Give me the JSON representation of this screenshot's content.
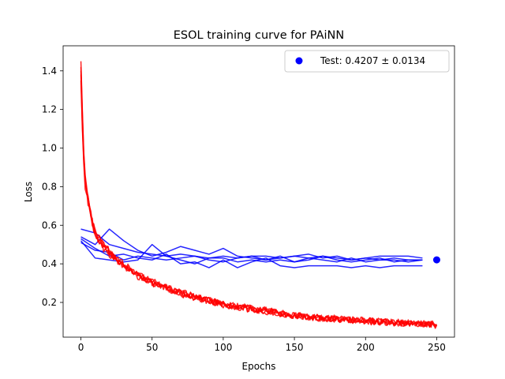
{
  "chart_data": {
    "type": "line",
    "title": "ESOL training curve for PAiNN",
    "xlabel": "Epochs",
    "ylabel": "Loss",
    "xlim": [
      -12.5,
      262.5
    ],
    "ylim": [
      0.02,
      1.53
    ],
    "xticks": [
      0,
      50,
      100,
      150,
      200,
      250
    ],
    "yticks": [
      0.2,
      0.4,
      0.6,
      0.8,
      1.0,
      1.2,
      1.4
    ],
    "xtick_labels": [
      "0",
      "50",
      "100",
      "150",
      "200",
      "250"
    ],
    "ytick_labels": [
      "0.2",
      "0.4",
      "0.6",
      "0.8",
      "1.0",
      "1.2",
      "1.4"
    ],
    "grid": false,
    "legend": {
      "position": "top-right",
      "entries": [
        {
          "label": "Test: 0.4207 ± 0.0134",
          "marker": "circle",
          "color": "#0000ff"
        }
      ]
    },
    "colors": {
      "train": "#ff0000",
      "validation": "#0000ff",
      "test": "#0000ff"
    },
    "train_series": [
      {
        "x": [
          0,
          1,
          2,
          3,
          4,
          5,
          6,
          7,
          8,
          9,
          10,
          12,
          14,
          16,
          18,
          20,
          25,
          30,
          35,
          40,
          50,
          60,
          70,
          80,
          90,
          100,
          110,
          120,
          130,
          140,
          150,
          160,
          170,
          180,
          190,
          200,
          210,
          220,
          230,
          240,
          250
        ],
        "y": [
          1.45,
          1.2,
          0.98,
          0.85,
          0.8,
          0.74,
          0.7,
          0.66,
          0.62,
          0.6,
          0.57,
          0.54,
          0.52,
          0.5,
          0.49,
          0.47,
          0.43,
          0.4,
          0.37,
          0.35,
          0.31,
          0.28,
          0.25,
          0.23,
          0.21,
          0.19,
          0.18,
          0.17,
          0.16,
          0.145,
          0.135,
          0.125,
          0.12,
          0.115,
          0.11,
          0.105,
          0.1,
          0.098,
          0.095,
          0.09,
          0.085
        ]
      },
      {
        "x": [
          0,
          1,
          2,
          3,
          4,
          5,
          6,
          7,
          8,
          9,
          10,
          12,
          14,
          16,
          18,
          20,
          25,
          30,
          35,
          40,
          50,
          60,
          70,
          80,
          90,
          100,
          110,
          120,
          130,
          140,
          150,
          160,
          170,
          180,
          190,
          200,
          210,
          220,
          230,
          240,
          250
        ],
        "y": [
          1.4,
          1.15,
          0.95,
          0.82,
          0.77,
          0.72,
          0.68,
          0.64,
          0.61,
          0.59,
          0.56,
          0.53,
          0.51,
          0.49,
          0.48,
          0.46,
          0.42,
          0.39,
          0.36,
          0.34,
          0.3,
          0.27,
          0.245,
          0.225,
          0.205,
          0.185,
          0.175,
          0.165,
          0.155,
          0.14,
          0.13,
          0.122,
          0.117,
          0.112,
          0.108,
          0.102,
          0.098,
          0.095,
          0.092,
          0.088,
          0.083
        ]
      },
      {
        "x": [
          0,
          1,
          2,
          3,
          4,
          5,
          6,
          7,
          8,
          9,
          10,
          12,
          14,
          16,
          18,
          20,
          25,
          30,
          35,
          40,
          50,
          60,
          70,
          80,
          90,
          100,
          110,
          120,
          130,
          140,
          150,
          160,
          170,
          180,
          190,
          200,
          210,
          220,
          230,
          240,
          250
        ],
        "y": [
          1.35,
          1.1,
          0.92,
          0.8,
          0.76,
          0.73,
          0.69,
          0.65,
          0.62,
          0.58,
          0.55,
          0.52,
          0.5,
          0.48,
          0.47,
          0.45,
          0.41,
          0.385,
          0.36,
          0.335,
          0.3,
          0.275,
          0.25,
          0.23,
          0.21,
          0.19,
          0.178,
          0.168,
          0.158,
          0.143,
          0.133,
          0.124,
          0.118,
          0.113,
          0.109,
          0.104,
          0.099,
          0.096,
          0.093,
          0.089,
          0.084
        ]
      },
      {
        "x": [
          0,
          1,
          2,
          3,
          4,
          5,
          6,
          7,
          8,
          9,
          10,
          12,
          14,
          16,
          18,
          20,
          25,
          30,
          35,
          40,
          50,
          60,
          70,
          80,
          90,
          100,
          110,
          120,
          130,
          140,
          150,
          160,
          170,
          180,
          190,
          200,
          210,
          220,
          230,
          240,
          250
        ],
        "y": [
          1.42,
          1.18,
          0.97,
          0.84,
          0.78,
          0.74,
          0.71,
          0.67,
          0.63,
          0.6,
          0.57,
          0.55,
          0.53,
          0.5,
          0.48,
          0.46,
          0.43,
          0.4,
          0.37,
          0.345,
          0.305,
          0.28,
          0.255,
          0.232,
          0.212,
          0.192,
          0.18,
          0.17,
          0.16,
          0.146,
          0.136,
          0.126,
          0.121,
          0.116,
          0.111,
          0.106,
          0.101,
          0.097,
          0.094,
          0.09,
          0.086
        ]
      },
      {
        "x": [
          0,
          1,
          2,
          3,
          4,
          5,
          6,
          7,
          8,
          9,
          10,
          12,
          14,
          16,
          18,
          20,
          25,
          30,
          35,
          40,
          50,
          60,
          70,
          80,
          90,
          100,
          110,
          120,
          130,
          140,
          150,
          160,
          170,
          180,
          190,
          200,
          210,
          220,
          230,
          240,
          250
        ],
        "y": [
          1.38,
          1.12,
          0.94,
          0.83,
          0.79,
          0.75,
          0.7,
          0.66,
          0.61,
          0.58,
          0.56,
          0.53,
          0.51,
          0.49,
          0.47,
          0.45,
          0.42,
          0.39,
          0.365,
          0.34,
          0.305,
          0.275,
          0.248,
          0.228,
          0.208,
          0.188,
          0.176,
          0.166,
          0.156,
          0.142,
          0.132,
          0.123,
          0.118,
          0.113,
          0.109,
          0.103,
          0.099,
          0.096,
          0.092,
          0.088,
          0.082
        ]
      }
    ],
    "validation_series": [
      {
        "x": [
          0,
          10,
          20,
          30,
          40,
          50,
          60,
          70,
          80,
          90,
          100,
          110,
          120,
          130,
          140,
          150,
          160,
          170,
          180,
          190,
          200,
          210,
          220,
          230,
          240
        ],
        "y": [
          0.58,
          0.56,
          0.5,
          0.48,
          0.46,
          0.45,
          0.44,
          0.45,
          0.44,
          0.43,
          0.44,
          0.43,
          0.44,
          0.44,
          0.43,
          0.44,
          0.43,
          0.44,
          0.43,
          0.42,
          0.43,
          0.42,
          0.43,
          0.42,
          0.42
        ]
      },
      {
        "x": [
          0,
          10,
          20,
          30,
          40,
          50,
          60,
          70,
          80,
          90,
          100,
          110,
          120,
          130,
          140,
          150,
          160,
          170,
          180,
          190,
          200,
          210,
          220,
          230,
          240
        ],
        "y": [
          0.54,
          0.5,
          0.58,
          0.52,
          0.47,
          0.44,
          0.46,
          0.49,
          0.47,
          0.45,
          0.48,
          0.44,
          0.43,
          0.42,
          0.43,
          0.44,
          0.45,
          0.43,
          0.44,
          0.42,
          0.43,
          0.44,
          0.44,
          0.44,
          0.43
        ]
      },
      {
        "x": [
          0,
          10,
          20,
          30,
          40,
          50,
          60,
          70,
          80,
          90,
          100,
          110,
          120,
          130,
          140,
          150,
          160,
          170,
          180,
          190,
          200,
          210,
          220,
          230,
          240
        ],
        "y": [
          0.52,
          0.43,
          0.42,
          0.41,
          0.42,
          0.5,
          0.44,
          0.42,
          0.4,
          0.43,
          0.43,
          0.41,
          0.42,
          0.41,
          0.42,
          0.41,
          0.42,
          0.44,
          0.42,
          0.41,
          0.42,
          0.43,
          0.41,
          0.42,
          0.42
        ]
      },
      {
        "x": [
          0,
          10,
          20,
          30,
          40,
          50,
          60,
          70,
          80,
          90,
          100,
          110,
          120,
          130,
          140,
          150,
          160,
          170,
          180,
          190,
          200,
          210,
          220,
          230,
          240
        ],
        "y": [
          0.53,
          0.48,
          0.44,
          0.45,
          0.43,
          0.42,
          0.45,
          0.4,
          0.41,
          0.38,
          0.42,
          0.38,
          0.41,
          0.43,
          0.39,
          0.38,
          0.39,
          0.39,
          0.39,
          0.38,
          0.39,
          0.38,
          0.39,
          0.39,
          0.39
        ]
      },
      {
        "x": [
          0,
          10,
          20,
          30,
          40,
          50,
          60,
          70,
          80,
          90,
          100,
          110,
          120,
          130,
          140,
          150,
          160,
          170,
          180,
          190,
          200,
          210,
          220,
          230,
          240
        ],
        "y": [
          0.51,
          0.47,
          0.46,
          0.42,
          0.44,
          0.43,
          0.42,
          0.43,
          0.44,
          0.42,
          0.41,
          0.43,
          0.44,
          0.42,
          0.44,
          0.41,
          0.43,
          0.42,
          0.41,
          0.43,
          0.41,
          0.42,
          0.42,
          0.41,
          0.42
        ]
      }
    ],
    "test_point": {
      "x": 250,
      "y": 0.4207,
      "std": 0.0134
    }
  }
}
